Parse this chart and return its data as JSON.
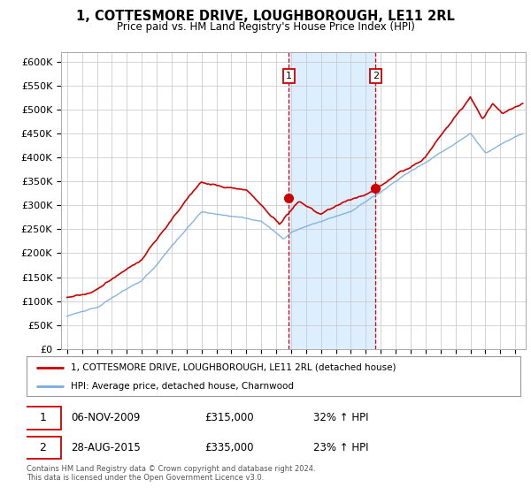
{
  "title": "1, COTTESMORE DRIVE, LOUGHBOROUGH, LE11 2RL",
  "subtitle": "Price paid vs. HM Land Registry's House Price Index (HPI)",
  "ylim": [
    0,
    620000
  ],
  "yticks": [
    0,
    50000,
    100000,
    150000,
    200000,
    250000,
    300000,
    350000,
    400000,
    450000,
    500000,
    550000,
    600000
  ],
  "xlim_left": 1994.6,
  "xlim_right": 2025.7,
  "red_line_color": "#cc0000",
  "blue_line_color": "#7aaddb",
  "sale1_price": 315000,
  "sale1_hpi_pct": "32%",
  "sale2_price": 335000,
  "sale2_hpi_pct": "23%",
  "sale1_year": 2009.85,
  "sale2_year": 2015.65,
  "sale1_date": "06-NOV-2009",
  "sale2_date": "28-AUG-2015",
  "legend_line1": "1, COTTESMORE DRIVE, LOUGHBOROUGH, LE11 2RL (detached house)",
  "legend_line2": "HPI: Average price, detached house, Charnwood",
  "footnote1": "Contains HM Land Registry data © Crown copyright and database right 2024.",
  "footnote2": "This data is licensed under the Open Government Licence v3.0.",
  "bg_color": "#ffffff",
  "grid_color": "#cccccc",
  "highlight_color": "#ddeeff",
  "noise_seed": 17
}
